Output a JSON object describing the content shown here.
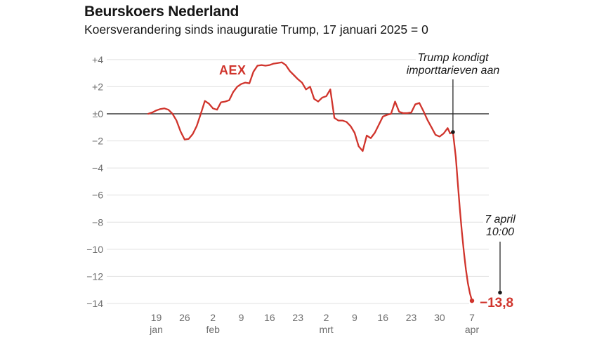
{
  "header": {
    "title": "Beurskoers Nederland",
    "subtitle": "Koersverandering sinds inauguratie Trump, 17 januari 2025 = 0"
  },
  "chart_data": {
    "type": "line",
    "title": "Beurskoers Nederland",
    "subtitle": "Koersverandering sinds inauguratie Trump, 17 januari 2025 = 0",
    "baseline_note": "17 januari 2025 = 0",
    "grid": true,
    "legend_position": "inline-label",
    "colors": {
      "line": "#d0342c",
      "grid": "#e1e1e1",
      "zero_line": "#3a3a3a",
      "tick_text": "#6e6e6e",
      "text": "#161616",
      "annotation_line": "#2a2a2a",
      "dot": "#1a1a1a"
    },
    "y_axis": {
      "range": [
        -14,
        4
      ],
      "ticks": [
        {
          "v": 4,
          "label": "+4"
        },
        {
          "v": 2,
          "label": "+2"
        },
        {
          "v": 0,
          "label": "±0"
        },
        {
          "v": -2,
          "label": "−2"
        },
        {
          "v": -4,
          "label": "−4"
        },
        {
          "v": -6,
          "label": "−6"
        },
        {
          "v": -8,
          "label": "−8"
        },
        {
          "v": -10,
          "label": "−10"
        },
        {
          "v": -12,
          "label": "−12"
        },
        {
          "v": -14,
          "label": "−14"
        }
      ]
    },
    "x_axis": {
      "unit": "days since 17 januari 2025",
      "ticks": [
        {
          "day": 2,
          "label": "19",
          "month": "jan"
        },
        {
          "day": 9,
          "label": "26",
          "month": ""
        },
        {
          "day": 16,
          "label": "2",
          "month": "feb"
        },
        {
          "day": 23,
          "label": "9",
          "month": ""
        },
        {
          "day": 30,
          "label": "16",
          "month": ""
        },
        {
          "day": 37,
          "label": "23",
          "month": ""
        },
        {
          "day": 44,
          "label": "2",
          "month": "mrt"
        },
        {
          "day": 51,
          "label": "9",
          "month": ""
        },
        {
          "day": 58,
          "label": "16",
          "month": ""
        },
        {
          "day": 65,
          "label": "23",
          "month": ""
        },
        {
          "day": 72,
          "label": "30",
          "month": ""
        },
        {
          "day": 80,
          "label": "7",
          "month": "apr"
        }
      ]
    },
    "series": [
      {
        "name": "AEX",
        "days": [
          0,
          1,
          2,
          3,
          4,
          5,
          6,
          7,
          8,
          9,
          10,
          11,
          12,
          13,
          14,
          15,
          16,
          17,
          18,
          19,
          20,
          21,
          22,
          23,
          24,
          25,
          26,
          27,
          28,
          29,
          30,
          31,
          32,
          33,
          34,
          35,
          36,
          37,
          38,
          39,
          40,
          41,
          42,
          43,
          44,
          45,
          46,
          47,
          48,
          49,
          50,
          51,
          52,
          53,
          54,
          55,
          56,
          57,
          58,
          59,
          60,
          61,
          62,
          63,
          64,
          65,
          66,
          67,
          68,
          69,
          70,
          71,
          72,
          73,
          74,
          74.6,
          75.3,
          76,
          76.5,
          77,
          77.5,
          78,
          78.5,
          79,
          79.5,
          80
        ],
        "values": [
          0,
          0.1,
          0.25,
          0.35,
          0.4,
          0.3,
          0,
          -0.5,
          -1.3,
          -1.9,
          -1.85,
          -1.5,
          -0.9,
          0,
          0.95,
          0.75,
          0.4,
          0.3,
          0.85,
          0.9,
          1.0,
          1.6,
          2.0,
          2.2,
          2.3,
          2.25,
          3.1,
          3.55,
          3.6,
          3.55,
          3.6,
          3.7,
          3.75,
          3.8,
          3.6,
          3.15,
          2.85,
          2.55,
          2.3,
          1.8,
          2.0,
          1.1,
          0.9,
          1.2,
          1.3,
          1.8,
          -0.3,
          -0.5,
          -0.5,
          -0.6,
          -0.9,
          -1.4,
          -2.4,
          -2.75,
          -1.6,
          -1.8,
          -1.4,
          -0.8,
          -0.2,
          -0.08,
          0,
          0.9,
          0.15,
          0.05,
          0.05,
          0.1,
          0.7,
          0.8,
          0.2,
          -0.45,
          -1.0,
          -1.55,
          -1.68,
          -1.45,
          -1.05,
          -1.45,
          -1.35,
          -3.2,
          -5.1,
          -7.0,
          -8.7,
          -10.2,
          -11.5,
          -12.5,
          -13.25,
          -13.8
        ]
      }
    ],
    "annotations": [
      {
        "id": "tariffs",
        "text_lines": [
          "Trump kondigt",
          "importtarieven aan"
        ],
        "day": 75.3,
        "value": -1.35
      },
      {
        "id": "last-value",
        "text_lines": [
          "7 april",
          "10:00"
        ],
        "value_label": "−13,8",
        "day": 80,
        "value": -13.8
      }
    ]
  }
}
